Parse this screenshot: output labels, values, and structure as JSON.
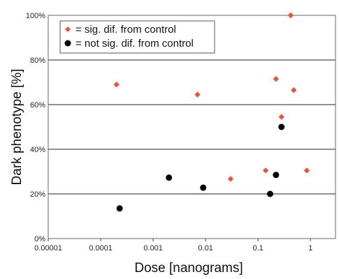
{
  "chart_data": {
    "type": "scatter",
    "title": "",
    "xlabel": "Dose [nanograms]",
    "ylabel": "Dark phenotype [%]",
    "x_scale": "log",
    "xlim": [
      1e-05,
      3
    ],
    "ylim": [
      0,
      100
    ],
    "x_tick_labels": [
      "0.00001",
      "0.0001",
      "0.001",
      "0.01",
      "0.1",
      "1"
    ],
    "x_tick_values": [
      1e-05,
      0.0001,
      0.001,
      0.01,
      0.1,
      1
    ],
    "y_tick_labels": [
      "0%",
      "20%",
      "40%",
      "60%",
      "80%",
      "100%"
    ],
    "y_tick_values": [
      0,
      20,
      40,
      60,
      80,
      100
    ],
    "grid": "horizontal",
    "legend_position": "top-left",
    "series": [
      {
        "name": "= sig. dif. from control",
        "marker": "diamond",
        "color": "#e8533a",
        "points": [
          {
            "x": 0.0002,
            "y": 69
          },
          {
            "x": 0.007,
            "y": 64.5
          },
          {
            "x": 0.03,
            "y": 26.7
          },
          {
            "x": 0.14,
            "y": 30.5
          },
          {
            "x": 0.22,
            "y": 71.5
          },
          {
            "x": 0.28,
            "y": 54.5
          },
          {
            "x": 0.42,
            "y": 100
          },
          {
            "x": 0.48,
            "y": 66.5
          },
          {
            "x": 0.85,
            "y": 30.5
          }
        ]
      },
      {
        "name": "= not sig. dif. from control",
        "marker": "circle",
        "color": "#000000",
        "points": [
          {
            "x": 0.00023,
            "y": 13.5
          },
          {
            "x": 0.002,
            "y": 27.3
          },
          {
            "x": 0.009,
            "y": 22.8
          },
          {
            "x": 0.17,
            "y": 20
          },
          {
            "x": 0.22,
            "y": 28.5
          },
          {
            "x": 0.28,
            "y": 50
          }
        ]
      }
    ]
  }
}
